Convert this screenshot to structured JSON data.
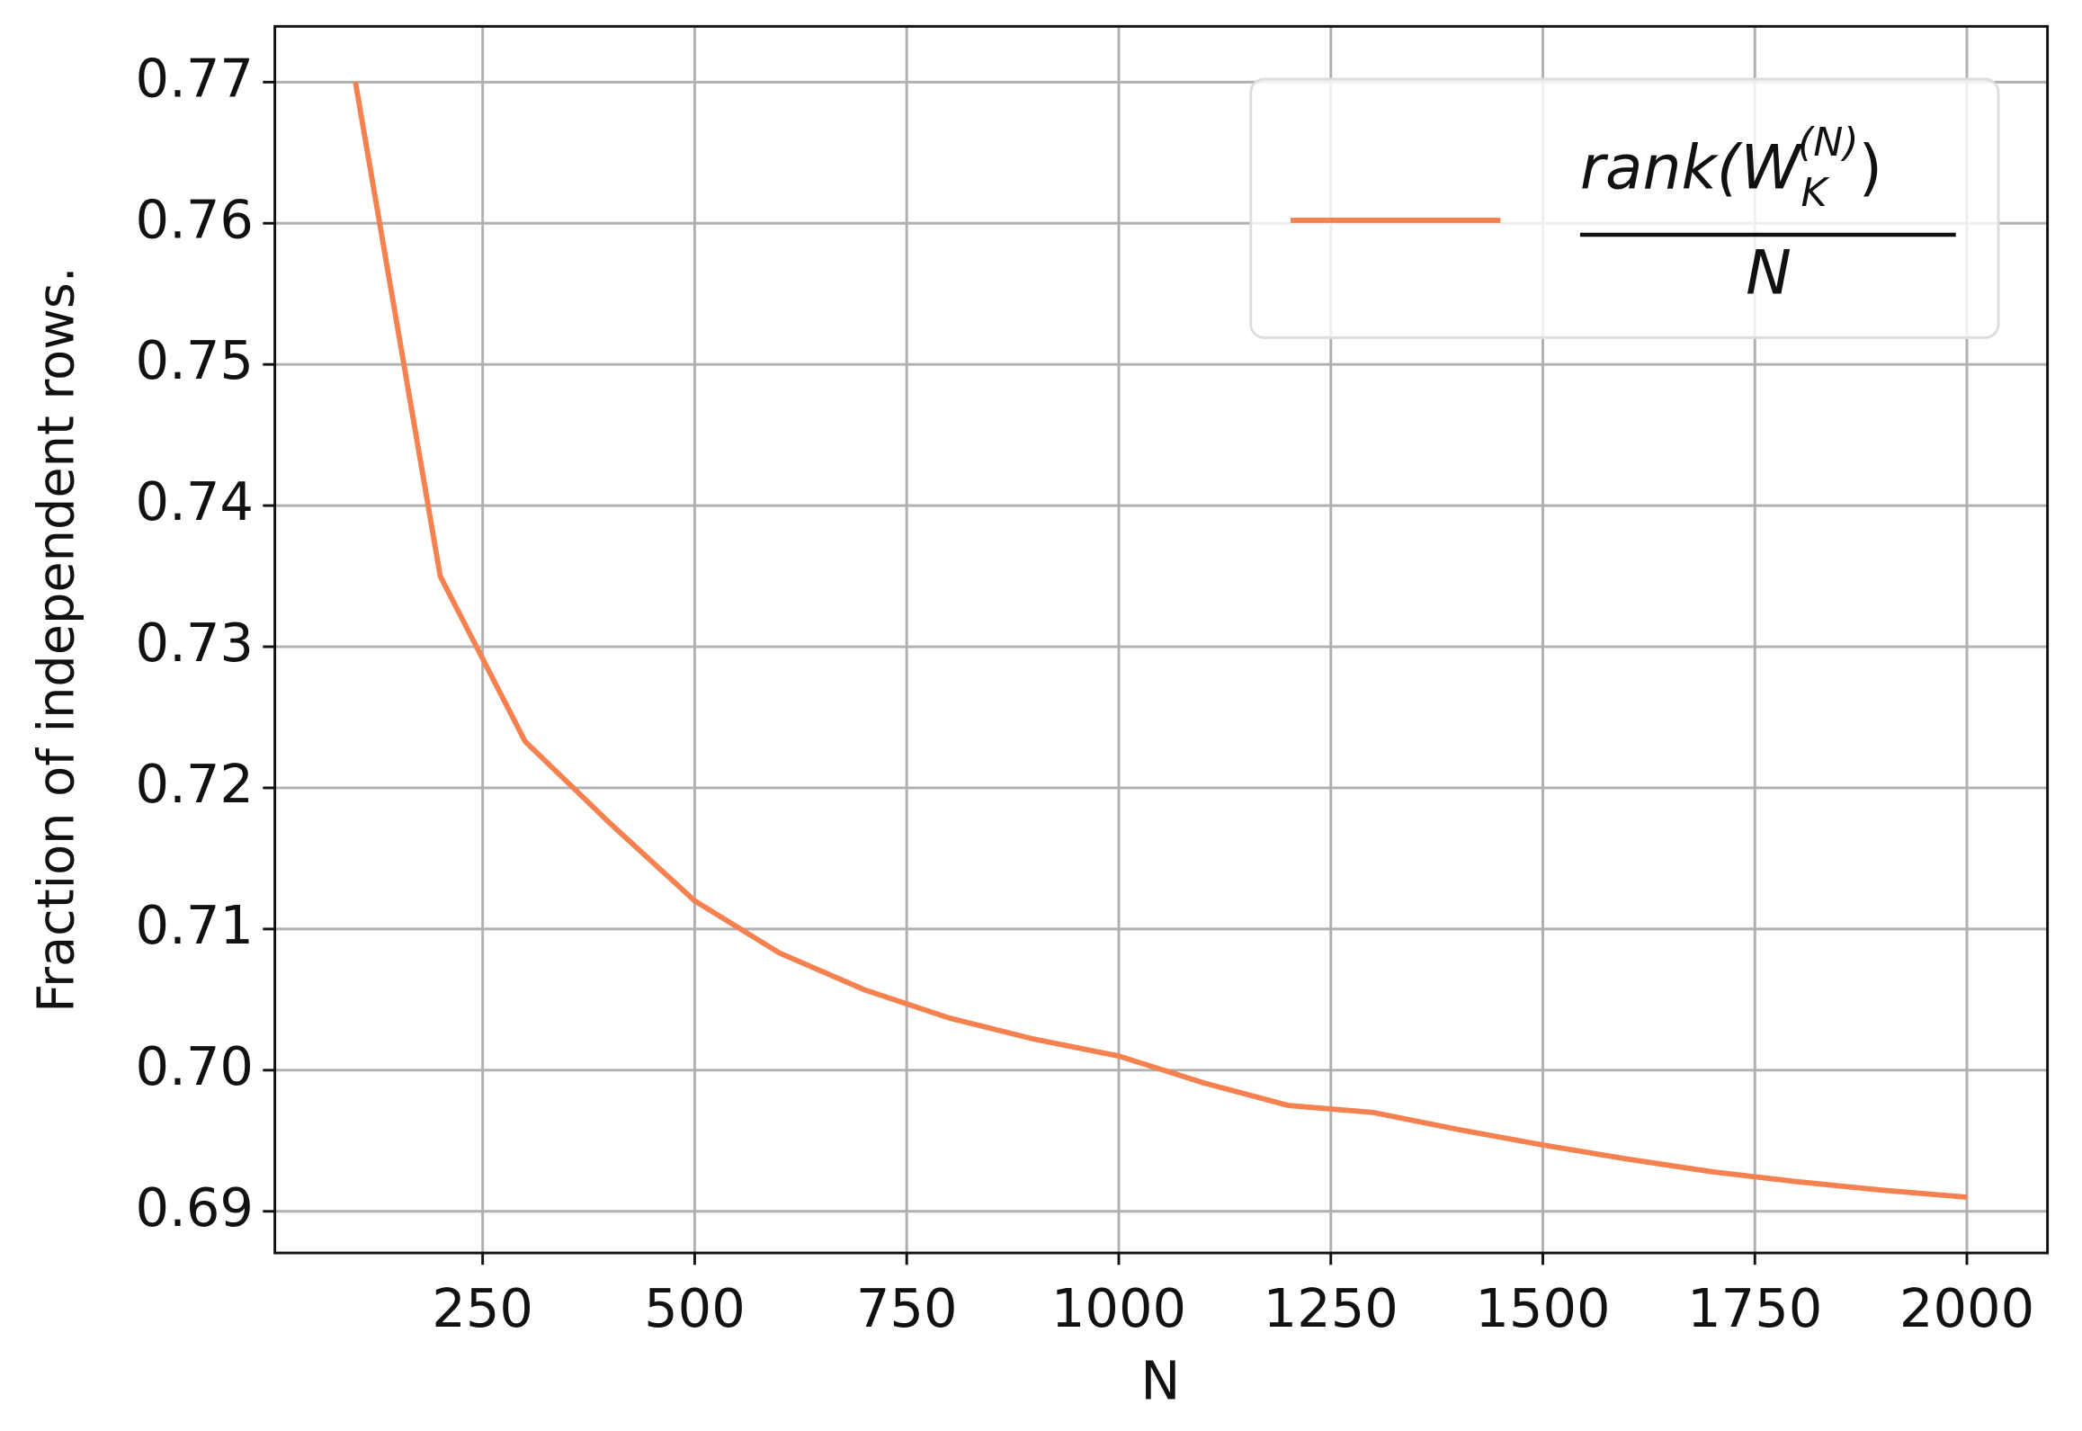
{
  "chart_data": {
    "type": "line",
    "xlabel": "N",
    "ylabel": "Fraction of independent rows.",
    "x": [
      100,
      200,
      300,
      400,
      500,
      600,
      700,
      800,
      900,
      1000,
      1100,
      1200,
      1300,
      1400,
      1500,
      1600,
      1700,
      1800,
      1900,
      2000
    ],
    "series": [
      {
        "name": {
          "numerator": [
            "rank(W",
            "K",
            "(N)",
            ")"
          ],
          "denominator": "N"
        },
        "color": "#f4814f",
        "values": [
          0.77,
          0.735,
          0.7233,
          0.7175,
          0.712,
          0.7083,
          0.7057,
          0.7037,
          0.7022,
          0.701,
          0.6991,
          0.6975,
          0.697,
          0.6958,
          0.6947,
          0.6937,
          0.6928,
          0.6921,
          0.6915,
          0.691
        ]
      }
    ],
    "xlim": [
      5,
      2095
    ],
    "ylim": [
      0.68705,
      0.77395
    ],
    "xticks": [
      250,
      500,
      750,
      1000,
      1250,
      1500,
      1750,
      2000
    ],
    "yticks": [
      {
        "value": 0.69,
        "label": "0.69"
      },
      {
        "value": 0.7,
        "label": "0.70"
      },
      0.71,
      0.72,
      0.73,
      0.74,
      0.75,
      0.76,
      0.77
    ],
    "grid": true,
    "legend": "upper right"
  }
}
